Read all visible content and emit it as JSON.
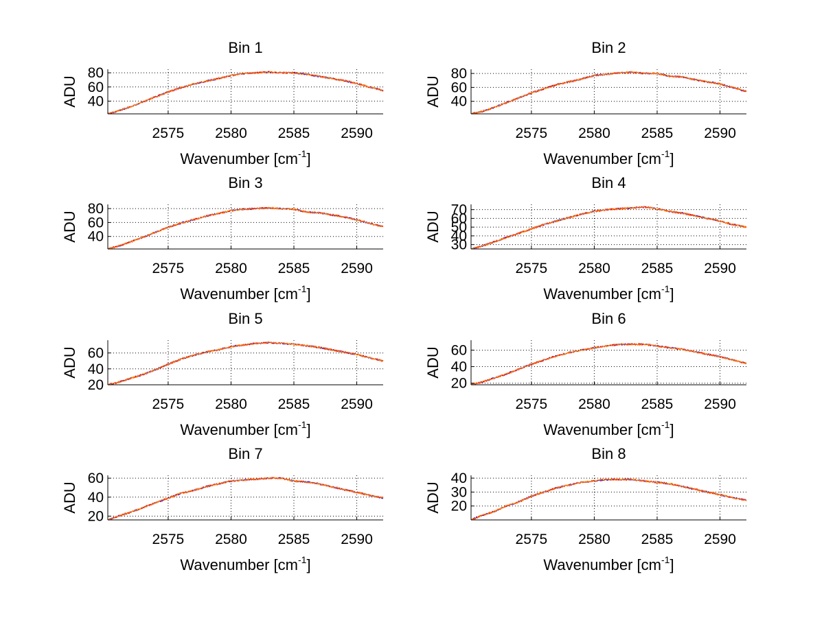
{
  "figure": {
    "background": "#ffffff",
    "series_colors": [
      "#0000ff",
      "#ff0000",
      "#ff8800"
    ]
  },
  "chart_data": [
    {
      "type": "line",
      "title": "Bin 1",
      "xlabel_main": "Wavenumber [cm",
      "xlabel_sup": "-1",
      "xlabel_tail": "]",
      "ylabel": "ADU",
      "xlim": [
        2570.2,
        2592.1
      ],
      "ylim": [
        22,
        85
      ],
      "xticks": [
        2575,
        2580,
        2585,
        2590
      ],
      "yticks": [
        40,
        60,
        80
      ],
      "grid": true,
      "curve": {
        "x": [
          2570.2,
          2571,
          2572,
          2573,
          2574,
          2575,
          2576,
          2577,
          2578,
          2579,
          2580,
          2581,
          2582,
          2583,
          2584,
          2585,
          2586,
          2587,
          2588,
          2589,
          2590,
          2591,
          2592.1
        ],
        "y": [
          22,
          26,
          32,
          39,
          46,
          53,
          59,
          64,
          68,
          72,
          76,
          79,
          80,
          81,
          80,
          80,
          78,
          75,
          72,
          69,
          65,
          60,
          55
        ]
      }
    },
    {
      "type": "line",
      "title": "Bin 2",
      "xlabel_main": "Wavenumber [cm",
      "xlabel_sup": "-1",
      "xlabel_tail": "]",
      "ylabel": "ADU",
      "xlim": [
        2570.2,
        2592.1
      ],
      "ylim": [
        22,
        86
      ],
      "xticks": [
        2575,
        2580,
        2585,
        2590
      ],
      "yticks": [
        40,
        60,
        80
      ],
      "grid": true,
      "curve": {
        "x": [
          2570.2,
          2571,
          2572,
          2573,
          2574,
          2575,
          2576,
          2577,
          2578,
          2579,
          2580,
          2581,
          2582,
          2583,
          2584,
          2585,
          2586,
          2587,
          2588,
          2589,
          2590,
          2591,
          2592.1
        ],
        "y": [
          22,
          25,
          31,
          38,
          45,
          52,
          58,
          64,
          68,
          72,
          77,
          79,
          81,
          82,
          80,
          80,
          76,
          75,
          71,
          68,
          65,
          60,
          54
        ]
      }
    },
    {
      "type": "line",
      "title": "Bin 3",
      "xlabel_main": "Wavenumber [cm",
      "xlabel_sup": "-1",
      "xlabel_tail": "]",
      "ylabel": "ADU",
      "xlim": [
        2570.2,
        2592.1
      ],
      "ylim": [
        22,
        86
      ],
      "xticks": [
        2575,
        2580,
        2585,
        2590
      ],
      "yticks": [
        40,
        60,
        80
      ],
      "grid": true,
      "curve": {
        "x": [
          2570.2,
          2571,
          2572,
          2573,
          2574,
          2575,
          2576,
          2577,
          2578,
          2579,
          2580,
          2581,
          2582,
          2583,
          2584,
          2585,
          2586,
          2587,
          2588,
          2589,
          2590,
          2591,
          2592.1
        ],
        "y": [
          22,
          26,
          32,
          39,
          46,
          53,
          59,
          64,
          69,
          73,
          77,
          79,
          80,
          81,
          80,
          79,
          75,
          74,
          71,
          68,
          64,
          59,
          54
        ]
      }
    },
    {
      "type": "line",
      "title": "Bin 4",
      "xlabel_main": "Wavenumber [cm",
      "xlabel_sup": "-1",
      "xlabel_tail": "]",
      "ylabel": "ADU",
      "xlim": [
        2570.2,
        2592.1
      ],
      "ylim": [
        25,
        76
      ],
      "xticks": [
        2575,
        2580,
        2585,
        2590
      ],
      "yticks": [
        30,
        40,
        50,
        60,
        70
      ],
      "grid": true,
      "curve": {
        "x": [
          2570.2,
          2571,
          2572,
          2573,
          2574,
          2575,
          2576,
          2577,
          2578,
          2579,
          2580,
          2581,
          2582,
          2583,
          2584,
          2585,
          2586,
          2587,
          2588,
          2589,
          2590,
          2591,
          2592.1
        ],
        "y": [
          25,
          28,
          33,
          38,
          43,
          48,
          53,
          57,
          61,
          65,
          68,
          70,
          71,
          72,
          73,
          71,
          68,
          66,
          63,
          60,
          57,
          53,
          50
        ]
      }
    },
    {
      "type": "line",
      "title": "Bin 5",
      "xlabel_main": "Wavenumber [cm",
      "xlabel_sup": "-1",
      "xlabel_tail": "]",
      "ylabel": "ADU",
      "xlim": [
        2570.2,
        2592.1
      ],
      "ylim": [
        20,
        76
      ],
      "xticks": [
        2575,
        2580,
        2585,
        2590
      ],
      "yticks": [
        20,
        40,
        60
      ],
      "grid": true,
      "curve": {
        "x": [
          2570.2,
          2571,
          2572,
          2573,
          2574,
          2575,
          2576,
          2577,
          2578,
          2579,
          2580,
          2581,
          2582,
          2583,
          2584,
          2585,
          2586,
          2587,
          2588,
          2589,
          2590,
          2591,
          2592.1
        ],
        "y": [
          20,
          23,
          28,
          33,
          39,
          46,
          52,
          57,
          61,
          64,
          68,
          70,
          72,
          73,
          72,
          71,
          69,
          67,
          64,
          61,
          58,
          54,
          50
        ]
      }
    },
    {
      "type": "line",
      "title": "Bin 6",
      "xlabel_main": "Wavenumber [cm",
      "xlabel_sup": "-1",
      "xlabel_tail": "]",
      "ylabel": "ADU",
      "xlim": [
        2570.2,
        2592.1
      ],
      "ylim": [
        18,
        72
      ],
      "xticks": [
        2575,
        2580,
        2585,
        2590
      ],
      "yticks": [
        20,
        40,
        60
      ],
      "grid": true,
      "curve": {
        "x": [
          2570.2,
          2571,
          2572,
          2573,
          2574,
          2575,
          2576,
          2577,
          2578,
          2579,
          2580,
          2581,
          2582,
          2583,
          2584,
          2585,
          2586,
          2587,
          2588,
          2589,
          2590,
          2591,
          2592.1
        ],
        "y": [
          18,
          21,
          26,
          31,
          37,
          43,
          48,
          53,
          57,
          60,
          63,
          65,
          67,
          67,
          67,
          65,
          63,
          61,
          58,
          55,
          52,
          48,
          44
        ]
      }
    },
    {
      "type": "line",
      "title": "Bin 7",
      "xlabel_main": "Wavenumber [cm",
      "xlabel_sup": "-1",
      "xlabel_tail": "]",
      "ylabel": "ADU",
      "xlim": [
        2570.2,
        2592.1
      ],
      "ylim": [
        16,
        63
      ],
      "xticks": [
        2575,
        2580,
        2585,
        2590
      ],
      "yticks": [
        20,
        40,
        60
      ],
      "grid": true,
      "curve": {
        "x": [
          2570.2,
          2571,
          2572,
          2573,
          2574,
          2575,
          2576,
          2577,
          2578,
          2579,
          2580,
          2581,
          2582,
          2583,
          2584,
          2585,
          2586,
          2587,
          2588,
          2589,
          2590,
          2591,
          2592.1
        ],
        "y": [
          16,
          20,
          24,
          29,
          34,
          39,
          44,
          47,
          51,
          54,
          57,
          58,
          59,
          60,
          60,
          57,
          56,
          54,
          51,
          48,
          45,
          42,
          39
        ]
      }
    },
    {
      "type": "line",
      "title": "Bin 8",
      "xlabel_main": "Wavenumber [cm",
      "xlabel_sup": "-1",
      "xlabel_tail": "]",
      "ylabel": "ADU",
      "xlim": [
        2570.2,
        2592.1
      ],
      "ylim": [
        10,
        42
      ],
      "xticks": [
        2575,
        2580,
        2585,
        2590
      ],
      "yticks": [
        20,
        30,
        40
      ],
      "grid": true,
      "curve": {
        "x": [
          2570.2,
          2571,
          2572,
          2573,
          2574,
          2575,
          2576,
          2577,
          2578,
          2579,
          2580,
          2581,
          2582,
          2583,
          2584,
          2585,
          2586,
          2587,
          2588,
          2589,
          2590,
          2591,
          2592.1
        ],
        "y": [
          10,
          13,
          16,
          20,
          23,
          27,
          30,
          33,
          35,
          37,
          38,
          39,
          39,
          39,
          38,
          37,
          36,
          34,
          32,
          30,
          28,
          26,
          24
        ]
      }
    }
  ]
}
